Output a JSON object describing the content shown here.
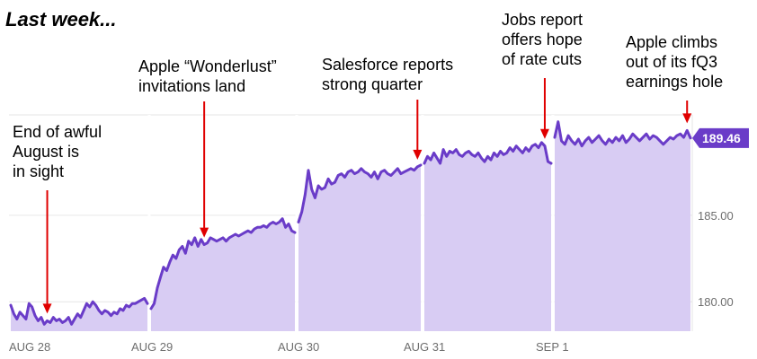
{
  "chart_data": {
    "type": "area",
    "title": "Last week...",
    "xlabel": "",
    "ylabel": "",
    "ylim": [
      178.3,
      190.8
    ],
    "grid": true,
    "x_ticks": [
      "AUG 28",
      "AUG 29",
      "AUG 30",
      "AUG 31",
      "SEP 1"
    ],
    "y_ticks": [
      180.0,
      185.0
    ],
    "y_tick_labels": [
      "180.00",
      "185.00"
    ],
    "last_price": 189.46,
    "last_price_label": "189.46",
    "days": [
      {
        "label": "AUG 28",
        "values": [
          179.8,
          179.3,
          179.0,
          179.4,
          179.2,
          179.0,
          179.9,
          179.7,
          179.2,
          178.9,
          179.1,
          178.7,
          178.9,
          178.8,
          179.1,
          178.9,
          179.0,
          178.8,
          178.9,
          179.1,
          178.7,
          179.0,
          179.3,
          179.1,
          179.5,
          179.9,
          179.7,
          180.0,
          179.8,
          179.5,
          179.3,
          179.5,
          179.4,
          179.2,
          179.4,
          179.3,
          179.6,
          179.5,
          179.8,
          179.7,
          179.9,
          179.9,
          180.0,
          180.1,
          180.2,
          179.9
        ]
      },
      {
        "label": "AUG 29",
        "values": [
          179.6,
          179.9,
          180.8,
          181.4,
          182.0,
          181.8,
          182.3,
          182.7,
          182.5,
          183.0,
          183.2,
          182.8,
          183.5,
          183.3,
          183.7,
          183.2,
          183.6,
          183.3,
          183.4,
          183.7,
          183.6,
          183.5,
          183.6,
          183.7,
          183.5,
          183.7,
          183.8,
          183.9,
          183.8,
          183.9,
          184.0,
          184.1,
          184.0,
          184.2,
          184.3,
          184.3,
          184.4,
          184.3,
          184.5,
          184.6,
          184.5,
          184.6,
          184.8,
          184.3,
          184.5,
          184.1,
          184.0
        ]
      },
      {
        "label": "AUG 30",
        "values": [
          184.6,
          185.2,
          186.2,
          187.6,
          186.5,
          186.0,
          186.7,
          186.5,
          186.6,
          187.1,
          186.8,
          186.9,
          187.3,
          187.4,
          187.2,
          187.5,
          187.6,
          187.4,
          187.5,
          187.7,
          187.5,
          187.4,
          187.2,
          187.5,
          187.1,
          187.5,
          187.6,
          187.4,
          187.3,
          187.5,
          187.7,
          187.4,
          187.5,
          187.6,
          187.7,
          187.6,
          187.8,
          187.9
        ]
      },
      {
        "label": "AUG 31",
        "values": [
          188.0,
          188.4,
          188.2,
          188.6,
          188.3,
          188.0,
          188.8,
          188.4,
          188.7,
          188.6,
          188.8,
          188.5,
          188.4,
          188.6,
          188.7,
          188.5,
          188.4,
          188.6,
          188.3,
          188.1,
          188.4,
          188.2,
          188.6,
          188.4,
          188.7,
          188.5,
          188.6,
          188.9,
          188.7,
          189.0,
          188.8,
          188.6,
          188.9,
          188.7,
          189.0,
          189.1,
          188.9,
          189.2,
          189.0,
          188.1,
          188.0
        ]
      },
      {
        "label": "SEP 1",
        "values": [
          189.5,
          190.4,
          189.3,
          189.1,
          189.6,
          189.3,
          189.1,
          189.4,
          189.0,
          189.3,
          189.5,
          189.2,
          189.4,
          189.6,
          189.3,
          189.1,
          189.4,
          189.2,
          189.5,
          189.3,
          189.6,
          189.2,
          189.4,
          189.7,
          189.5,
          189.3,
          189.5,
          189.7,
          189.4,
          189.6,
          189.5,
          189.3,
          189.1,
          189.3,
          189.5,
          189.4,
          189.6,
          189.7,
          189.5,
          189.9,
          189.46
        ]
      }
    ],
    "annotations": [
      {
        "day": 0,
        "at": 0.27,
        "text": [
          "End of awful",
          "August is",
          "in sight"
        ]
      },
      {
        "day": 1,
        "at": 0.37,
        "text": [
          "Apple “Wonderlust”",
          "invitations land"
        ]
      },
      {
        "day": 2,
        "at": 0.97,
        "text": [
          "Salesforce reports",
          "strong quarter"
        ]
      },
      {
        "day": 3,
        "at": 0.95,
        "text": [
          "Jobs report",
          "offers hope",
          "of rate cuts"
        ]
      },
      {
        "day": 4,
        "at": 0.97,
        "text": [
          "Apple climbs",
          "out of its fQ3",
          "earnings hole"
        ]
      }
    ],
    "colors": {
      "line": "#6a3cc8",
      "fill": "#d8ccf3",
      "badge": "#6a3cc8",
      "arrow": "#e00000",
      "grid": "#e6e6e6",
      "tick": "#6e6e6e"
    }
  }
}
